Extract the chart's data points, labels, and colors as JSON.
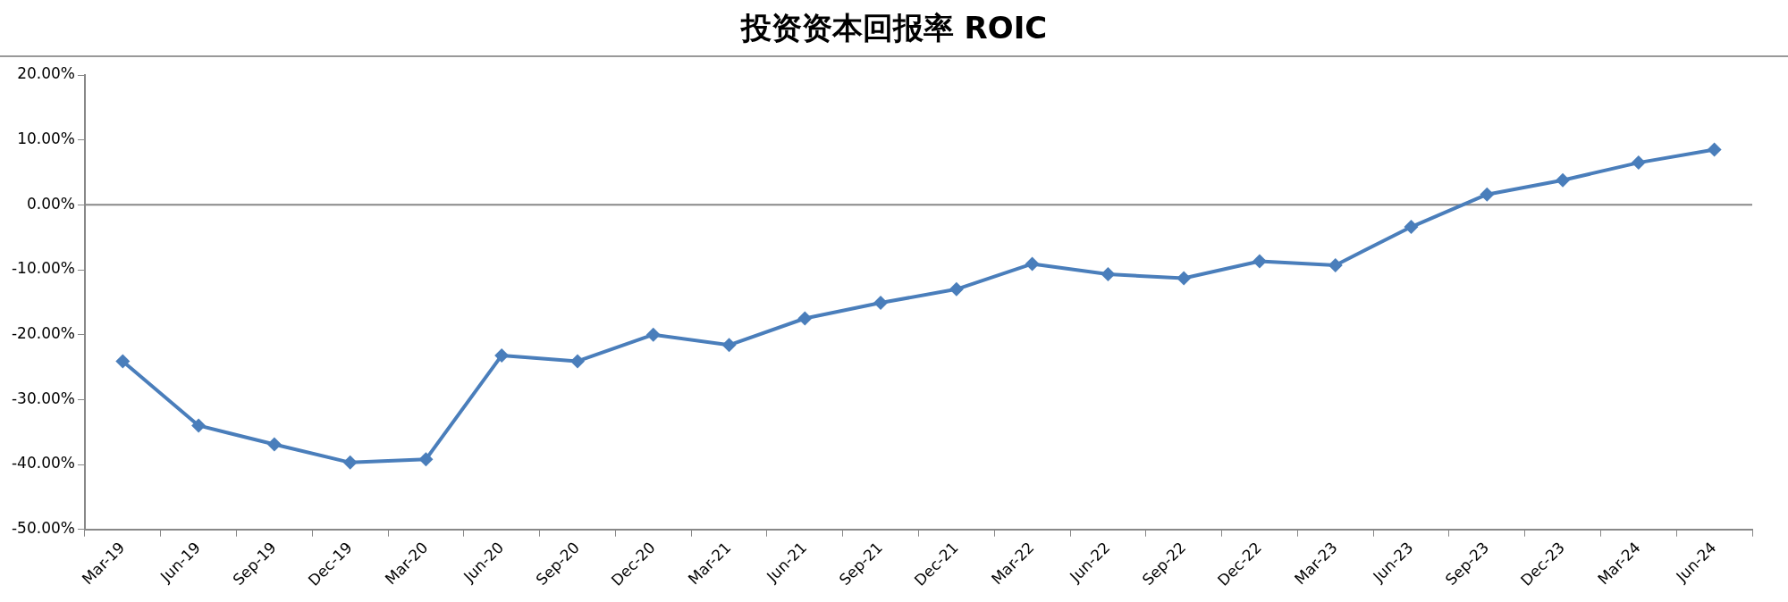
{
  "chart_data": {
    "type": "line",
    "title": "投资资本回报率 ROIC",
    "categories": [
      "Mar-19",
      "Jun-19",
      "Sep-19",
      "Dec-19",
      "Mar-20",
      "Jun-20",
      "Sep-20",
      "Dec-20",
      "Mar-21",
      "Jun-21",
      "Sep-21",
      "Dec-21",
      "Mar-22",
      "Jun-22",
      "Sep-22",
      "Dec-22",
      "Mar-23",
      "Jun-23",
      "Sep-23",
      "Dec-23",
      "Mar-24",
      "Jun-24"
    ],
    "series": [
      {
        "color": "#4a7ebb",
        "values": [
          -24.1,
          -34.0,
          -36.9,
          -39.7,
          -39.2,
          -23.2,
          -24.1,
          -20.0,
          -21.6,
          -17.5,
          -15.1,
          -13.0,
          -9.1,
          -10.7,
          -11.3,
          -8.7,
          -9.3,
          -3.4,
          1.6,
          3.8,
          6.5,
          8.5
        ]
      }
    ],
    "ylim": [
      -50,
      20
    ],
    "yticks": [
      {
        "value": -50,
        "label": "-50.00%"
      },
      {
        "value": -40,
        "label": "-40.00%"
      },
      {
        "value": -30,
        "label": "-30.00%"
      },
      {
        "value": -20,
        "label": "-20.00%"
      },
      {
        "value": -10,
        "label": "-10.00%"
      },
      {
        "value": 0,
        "label": "0.00%"
      },
      {
        "value": 10,
        "label": "10.00%"
      },
      {
        "value": 20,
        "label": "20.00%"
      }
    ],
    "ref_lines": [
      {
        "axis": "y",
        "value": 0,
        "color": "#888888"
      }
    ],
    "grid": false,
    "legend": false,
    "marker": "diamond",
    "line_style": "solid"
  }
}
